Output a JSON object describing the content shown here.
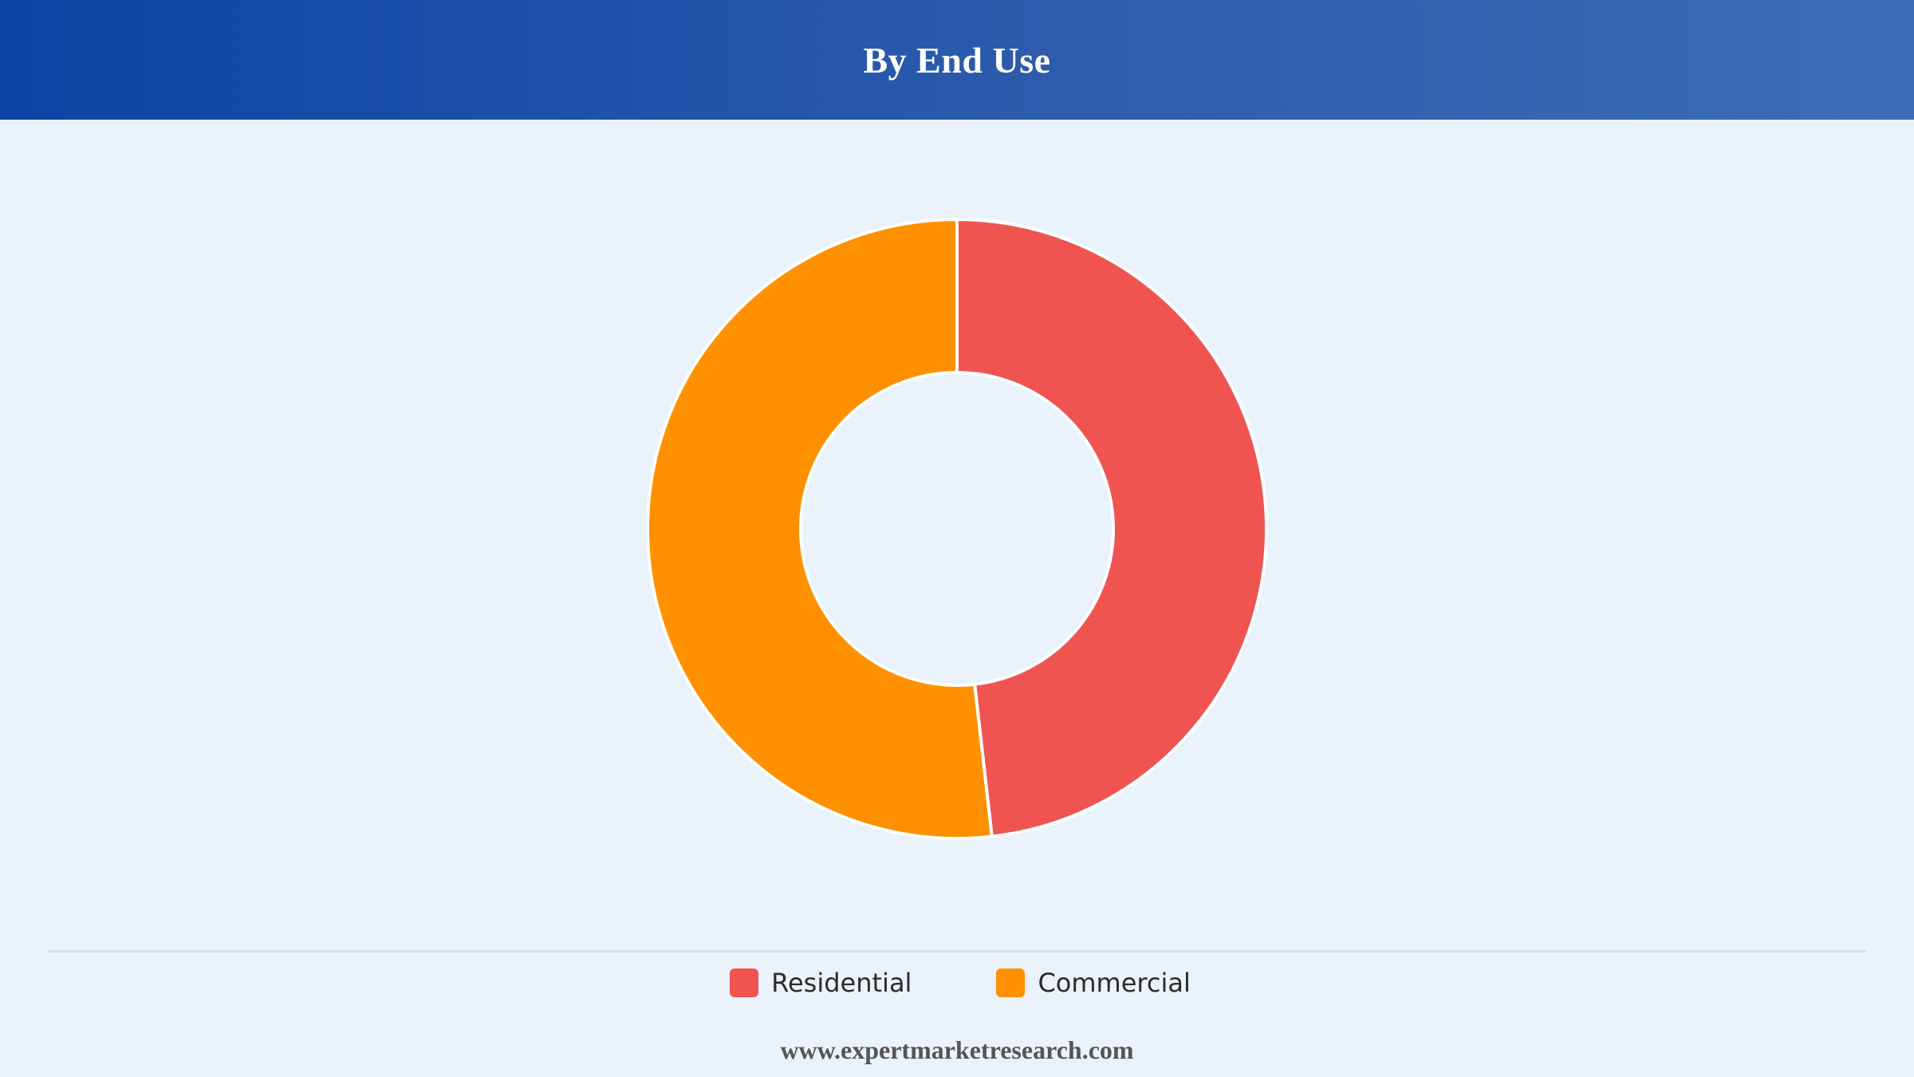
{
  "header": {
    "title": "By End Use"
  },
  "chart_data": {
    "type": "pie",
    "style": "donut",
    "title": "By End Use",
    "categories": [
      "Residential",
      "Commercial"
    ],
    "values": [
      48.2,
      51.8
    ],
    "colors": [
      "#ef5451",
      "#ff9100"
    ],
    "legend": "bottom",
    "grid": false
  },
  "footer": {
    "source": "www.expertmarketresearch.com"
  }
}
